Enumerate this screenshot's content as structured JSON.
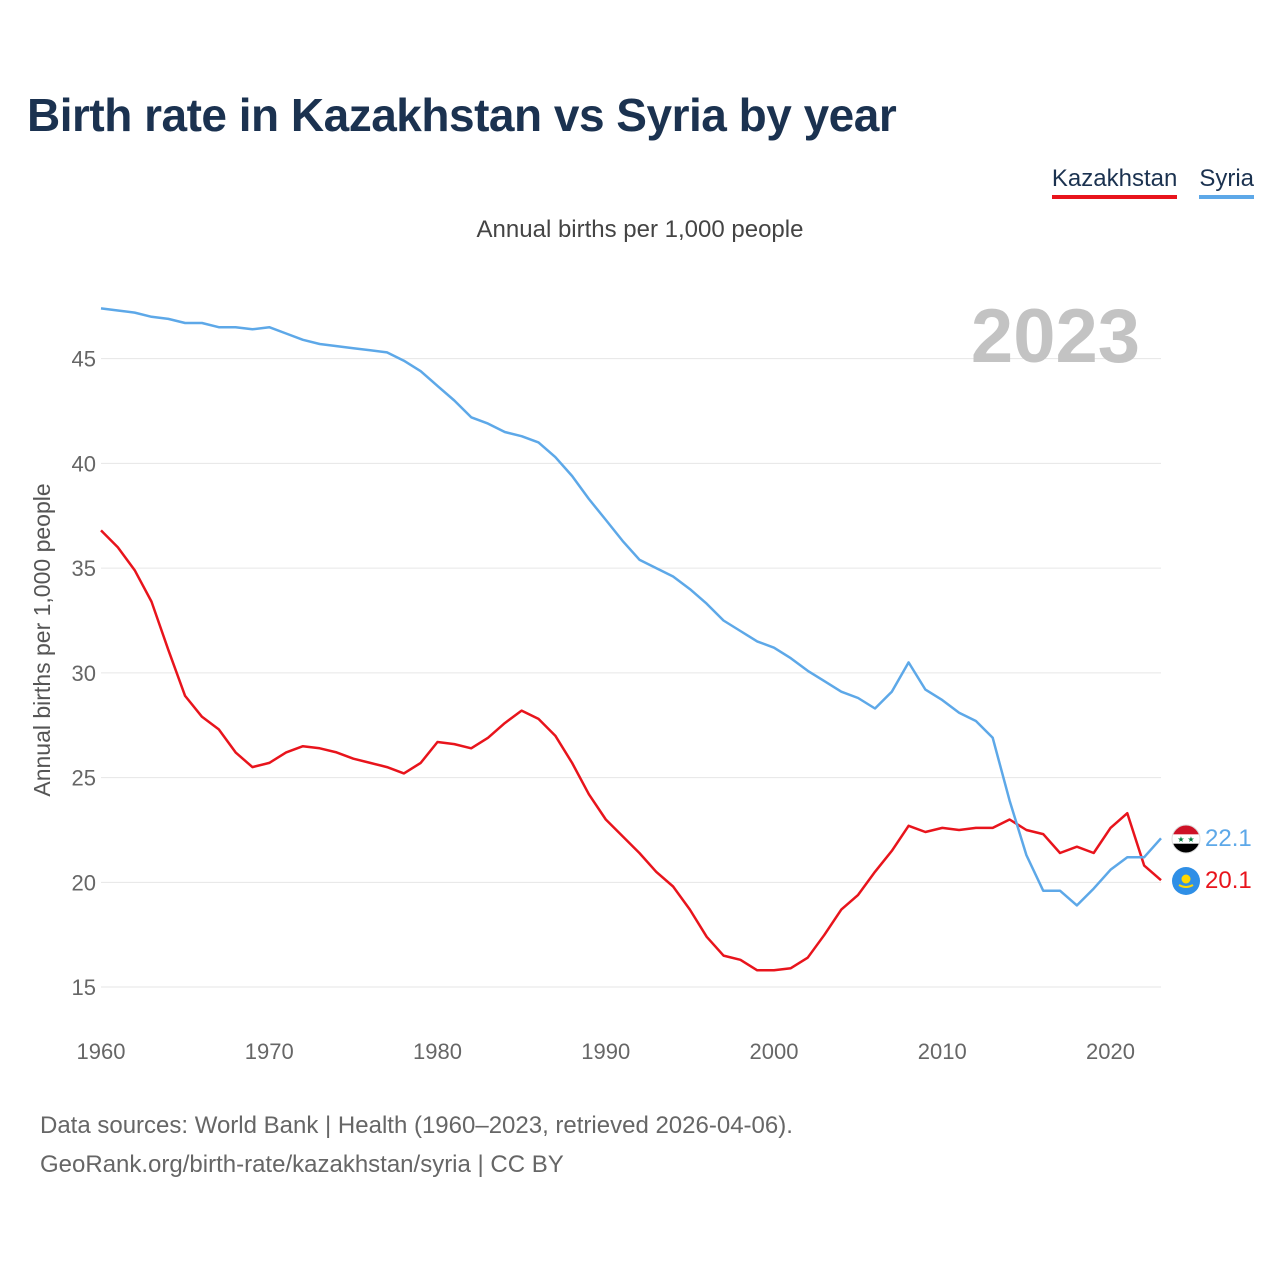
{
  "header": {
    "title": "Birth rate in Kazakhstan vs Syria by year",
    "subtitle": "Annual births per 1,000 people"
  },
  "legend": {
    "kazakhstan": "Kazakhstan",
    "syria": "Syria"
  },
  "footer": {
    "line1": "Data sources: World Bank | Health (1960–2023, retrieved 2026-04-06).",
    "line2": "GeoRank.org/birth-rate/kazakhstan/syria | CC BY"
  },
  "colors": {
    "kazakhstan": "#e8141c",
    "syria": "#5da8e8",
    "title": "#1b3250",
    "grid": "#e6e6e6"
  },
  "chart_data": {
    "type": "line",
    "title": "Birth rate in Kazakhstan vs Syria by year",
    "ylabel": "Annual births per 1,000 people",
    "xlabel": "",
    "xlim": [
      1960,
      2023
    ],
    "ylim": [
      14,
      47.8
    ],
    "x_ticks": [
      1960,
      1970,
      1980,
      1990,
      2000,
      2010,
      2020
    ],
    "y_ticks": [
      15,
      20,
      25,
      30,
      35,
      40,
      45
    ],
    "current_year": "2023",
    "grid": true,
    "legend_position": "top-right",
    "x": [
      1960,
      1961,
      1962,
      1963,
      1964,
      1965,
      1966,
      1967,
      1968,
      1969,
      1970,
      1971,
      1972,
      1973,
      1974,
      1975,
      1976,
      1977,
      1978,
      1979,
      1980,
      1981,
      1982,
      1983,
      1984,
      1985,
      1986,
      1987,
      1988,
      1989,
      1990,
      1991,
      1992,
      1993,
      1994,
      1995,
      1996,
      1997,
      1998,
      1999,
      2000,
      2001,
      2002,
      2003,
      2004,
      2005,
      2006,
      2007,
      2008,
      2009,
      2010,
      2011,
      2012,
      2013,
      2014,
      2015,
      2016,
      2017,
      2018,
      2019,
      2020,
      2021,
      2022,
      2023
    ],
    "series": [
      {
        "name": "Kazakhstan",
        "color": "#e8141c",
        "end_label": "20.1",
        "values": [
          36.8,
          36.0,
          34.9,
          33.4,
          31.1,
          28.9,
          27.9,
          27.3,
          26.2,
          25.5,
          25.7,
          26.2,
          26.5,
          26.4,
          26.2,
          25.9,
          25.7,
          25.5,
          25.2,
          25.7,
          26.7,
          26.6,
          26.4,
          26.9,
          27.6,
          28.2,
          27.8,
          27.0,
          25.7,
          24.2,
          23.0,
          22.2,
          21.4,
          20.5,
          19.8,
          18.7,
          17.4,
          16.5,
          16.3,
          15.8,
          15.8,
          15.9,
          16.4,
          17.5,
          18.7,
          19.4,
          20.5,
          21.5,
          22.7,
          22.4,
          22.6,
          22.5,
          22.6,
          22.6,
          23.0,
          22.5,
          22.3,
          21.4,
          21.7,
          21.4,
          22.6,
          23.3,
          20.8,
          20.1
        ]
      },
      {
        "name": "Syria",
        "color": "#5da8e8",
        "end_label": "22.1",
        "values": [
          47.4,
          47.3,
          47.2,
          47.0,
          46.9,
          46.7,
          46.7,
          46.5,
          46.5,
          46.4,
          46.5,
          46.2,
          45.9,
          45.7,
          45.6,
          45.5,
          45.4,
          45.3,
          44.9,
          44.4,
          43.7,
          43.0,
          42.2,
          41.9,
          41.5,
          41.3,
          41.0,
          40.3,
          39.4,
          38.3,
          37.3,
          36.3,
          35.4,
          35.0,
          34.6,
          34.0,
          33.3,
          32.5,
          32.0,
          31.5,
          31.2,
          30.7,
          30.1,
          29.6,
          29.1,
          28.8,
          28.3,
          29.1,
          30.5,
          29.2,
          28.7,
          28.1,
          27.7,
          26.9,
          23.9,
          21.3,
          19.6,
          19.6,
          18.9,
          19.7,
          20.6,
          21.2,
          21.2,
          22.1
        ]
      }
    ]
  }
}
